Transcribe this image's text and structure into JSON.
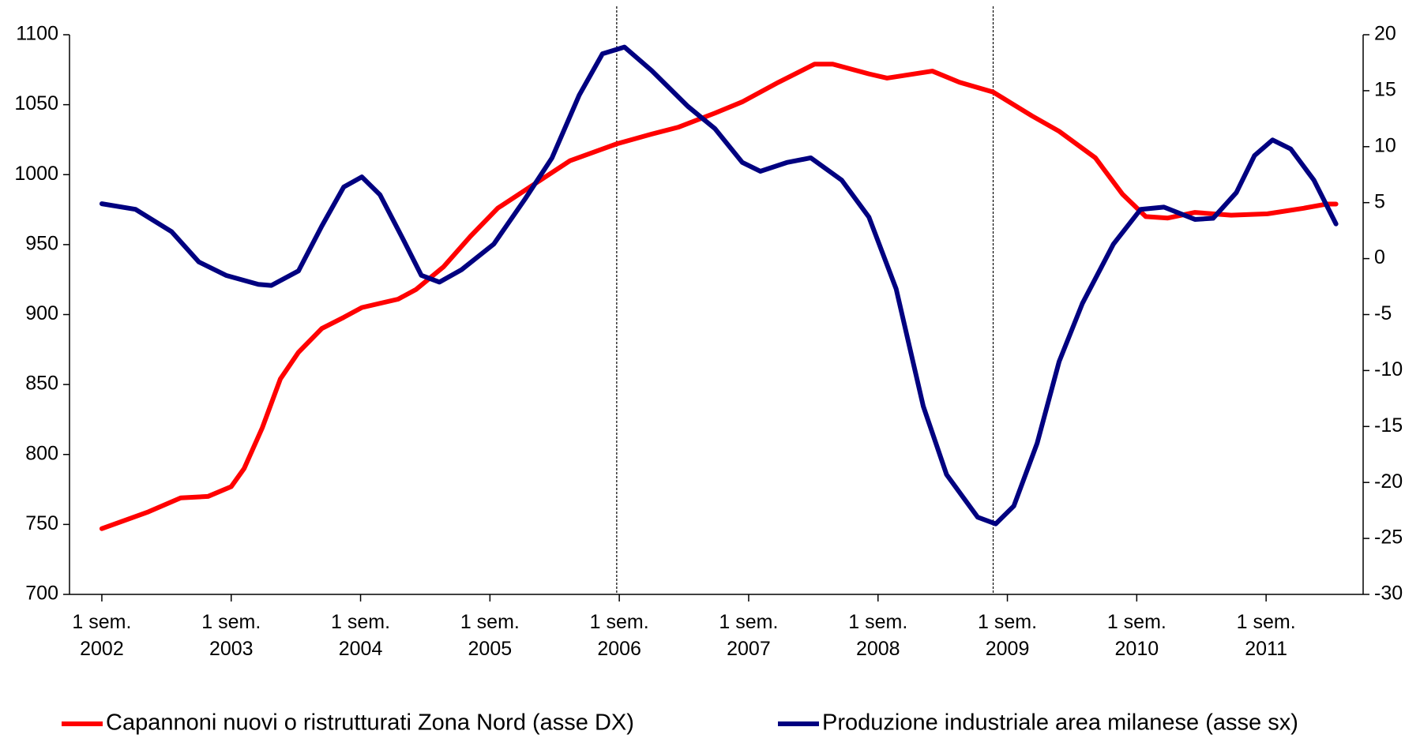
{
  "chart_data": {
    "type": "line",
    "series": [
      {
        "name": "Capannoni nuovi o ristrutturati Zona Nord (asse DX)",
        "color": "#ff0000",
        "axis": "y",
        "x": [
          2002.25,
          2002.61,
          2002.86,
          2003.07,
          2003.25,
          2003.35,
          2003.49,
          2003.63,
          2003.77,
          2003.95,
          2004.12,
          2004.26,
          2004.54,
          2004.68,
          2004.89,
          2005.1,
          2005.31,
          2005.59,
          2005.87,
          2006.23,
          2006.5,
          2006.71,
          2006.99,
          2007.2,
          2007.48,
          2007.76,
          2007.9,
          2008.18,
          2008.32,
          2008.67,
          2008.88,
          2009.14,
          2009.44,
          2009.65,
          2009.93,
          2010.14,
          2010.32,
          2010.49,
          2010.7,
          2010.98,
          2011.26,
          2011.54,
          2011.72,
          2011.79
        ],
        "values": [
          747,
          759,
          769,
          770,
          777,
          790,
          819,
          854,
          873,
          890,
          898,
          905,
          911,
          918,
          934,
          956,
          976,
          993,
          1010,
          1022,
          1029,
          1034,
          1044,
          1052,
          1066,
          1079,
          1079,
          1072,
          1069,
          1074,
          1066,
          1059,
          1042,
          1031,
          1012,
          986,
          970,
          969,
          973,
          971,
          972,
          976,
          979,
          979
        ]
      },
      {
        "name": "Produzione industriale area milanese (asse sx)",
        "color": "#000080",
        "axis": "y2",
        "x": [
          2002.25,
          2002.51,
          2002.79,
          2003.0,
          2003.21,
          2003.46,
          2003.56,
          2003.77,
          2003.95,
          2004.12,
          2004.26,
          2004.4,
          2004.58,
          2004.72,
          2004.86,
          2005.03,
          2005.28,
          2005.52,
          2005.73,
          2005.94,
          2006.12,
          2006.29,
          2006.5,
          2006.78,
          2006.99,
          2007.2,
          2007.34,
          2007.55,
          2007.73,
          2007.97,
          2008.18,
          2008.39,
          2008.6,
          2008.78,
          2009.02,
          2009.16,
          2009.3,
          2009.48,
          2009.65,
          2009.83,
          2010.07,
          2010.28,
          2010.46,
          2010.7,
          2010.84,
          2011.02,
          2011.16,
          2011.3,
          2011.44,
          2011.62,
          2011.79
        ],
        "values": [
          4.9,
          4.4,
          2.4,
          -0.3,
          -1.5,
          -2.3,
          -2.4,
          -1.1,
          2.9,
          6.4,
          7.3,
          5.7,
          1.7,
          -1.5,
          -2.1,
          -1.0,
          1.3,
          5.3,
          9.0,
          14.6,
          18.3,
          18.9,
          16.8,
          13.6,
          11.6,
          8.6,
          7.8,
          8.6,
          9.0,
          7.0,
          3.7,
          -2.7,
          -13.2,
          -19.3,
          -23.1,
          -23.7,
          -22.1,
          -16.5,
          -9.2,
          -4.0,
          1.3,
          4.4,
          4.6,
          3.5,
          3.6,
          5.9,
          9.2,
          10.6,
          9.8,
          7.0,
          3.1
        ]
      }
    ],
    "xlim": [
      2002,
      2012
    ],
    "xticks": [
      {
        "value": 2002.25,
        "label": "1 sem. 2002"
      },
      {
        "value": 2003.25,
        "label": "1 sem. 2003"
      },
      {
        "value": 2004.25,
        "label": "1 sem. 2004"
      },
      {
        "value": 2005.25,
        "label": "1 sem. 2005"
      },
      {
        "value": 2006.25,
        "label": "1 sem. 2006"
      },
      {
        "value": 2007.25,
        "label": "1 sem. 2007"
      },
      {
        "value": 2008.25,
        "label": "1 sem. 2008"
      },
      {
        "value": 2009.25,
        "label": "1 sem. 2009"
      },
      {
        "value": 2010.25,
        "label": "1 sem. 2010"
      },
      {
        "value": 2011.25,
        "label": "1 sem. 2011"
      }
    ],
    "ylim": [
      700,
      1100
    ],
    "yticks": [
      700,
      750,
      800,
      850,
      900,
      950,
      1000,
      1050,
      1100
    ],
    "y2lim": [
      -30,
      20
    ],
    "y2ticks": [
      -30,
      -25,
      -20,
      -15,
      -10,
      -5,
      0,
      5,
      10,
      15,
      20
    ],
    "vlines": [
      2006.23,
      2009.14
    ],
    "legend": "bottom"
  }
}
